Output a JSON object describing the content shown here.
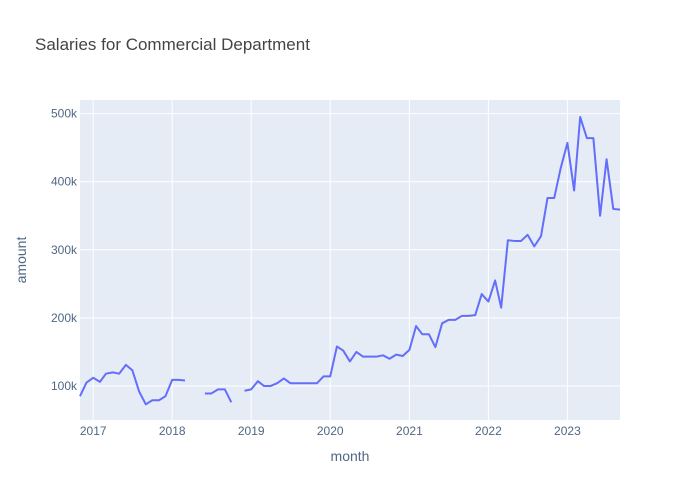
{
  "chart_data": {
    "type": "line",
    "title": "Salaries for Commercial Department",
    "xlabel": "month",
    "ylabel": "amount",
    "xlim": [
      "2016-11-01",
      "2023-09-01"
    ],
    "ylim": [
      50000,
      520000
    ],
    "grid": true,
    "legend": "none",
    "colors": {
      "background": "#e5ecf6",
      "grid": "#ffffff",
      "line": "#636efa"
    },
    "x_ticks": [
      {
        "value": "2017-01-01",
        "label": "2017"
      },
      {
        "value": "2018-01-01",
        "label": "2018"
      },
      {
        "value": "2019-01-01",
        "label": "2019"
      },
      {
        "value": "2020-01-01",
        "label": "2020"
      },
      {
        "value": "2021-01-01",
        "label": "2021"
      },
      {
        "value": "2022-01-01",
        "label": "2022"
      },
      {
        "value": "2023-01-01",
        "label": "2023"
      }
    ],
    "y_ticks": [
      {
        "value": 100000,
        "label": "100k"
      },
      {
        "value": 200000,
        "label": "200k"
      },
      {
        "value": 300000,
        "label": "300k"
      },
      {
        "value": 400000,
        "label": "400k"
      },
      {
        "value": 500000,
        "label": "500k"
      }
    ],
    "series": [
      {
        "x": [
          "2016-11-01",
          "2016-12-01",
          "2017-01-01",
          "2017-02-01",
          "2017-03-01",
          "2017-04-01",
          "2017-05-01",
          "2017-06-01",
          "2017-07-01",
          "2017-08-01",
          "2017-09-01",
          "2017-10-01",
          "2017-11-01",
          "2017-12-01",
          "2018-01-01",
          "2018-02-01",
          "2018-03-01",
          "2018-04-01",
          "2018-05-01",
          "2018-06-01",
          "2018-07-01",
          "2018-08-01",
          "2018-09-01",
          "2018-10-01",
          "2018-11-01",
          "2018-12-01",
          "2019-01-01",
          "2019-02-01",
          "2019-03-01",
          "2019-04-01",
          "2019-05-01",
          "2019-06-01",
          "2019-07-01",
          "2019-08-01",
          "2019-09-01",
          "2019-10-01",
          "2019-11-01",
          "2019-12-01",
          "2020-01-01",
          "2020-02-01",
          "2020-03-01",
          "2020-04-01",
          "2020-05-01",
          "2020-06-01",
          "2020-07-01",
          "2020-08-01",
          "2020-09-01",
          "2020-10-01",
          "2020-11-01",
          "2020-12-01",
          "2021-01-01",
          "2021-02-01",
          "2021-03-01",
          "2021-04-01",
          "2021-05-01",
          "2021-06-01",
          "2021-07-01",
          "2021-08-01",
          "2021-09-01",
          "2021-10-01",
          "2021-11-01",
          "2021-12-01",
          "2022-01-01",
          "2022-02-01",
          "2022-03-01",
          "2022-04-01",
          "2022-05-01",
          "2022-06-01",
          "2022-07-01",
          "2022-08-01",
          "2022-09-01",
          "2022-10-01",
          "2022-11-01",
          "2022-12-01",
          "2023-01-01",
          "2023-02-01",
          "2023-03-01",
          "2023-04-01",
          "2023-05-01",
          "2023-06-01",
          "2023-07-01",
          "2023-08-01",
          "2023-09-01"
        ],
        "y": [
          85000,
          105000,
          112000,
          106000,
          118000,
          120000,
          118000,
          131000,
          123000,
          92000,
          73000,
          79000,
          79000,
          85000,
          109000,
          109000,
          108000,
          null,
          null,
          89000,
          89000,
          95000,
          95000,
          76000,
          null,
          93000,
          95000,
          107000,
          100000,
          100000,
          104000,
          111000,
          104000,
          104000,
          104000,
          104000,
          104000,
          114000,
          114000,
          158000,
          152000,
          136000,
          150000,
          143000,
          143000,
          143000,
          145000,
          140000,
          146000,
          144000,
          153000,
          188000,
          176000,
          176000,
          157000,
          192000,
          197000,
          197000,
          203000,
          203000,
          204000,
          235000,
          224000,
          255000,
          215000,
          314000,
          313000,
          313000,
          322000,
          305000,
          320000,
          376000,
          376000,
          420000,
          457000,
          387000,
          495000,
          464000,
          464000,
          350000,
          433000,
          360000,
          359000
        ]
      }
    ]
  }
}
